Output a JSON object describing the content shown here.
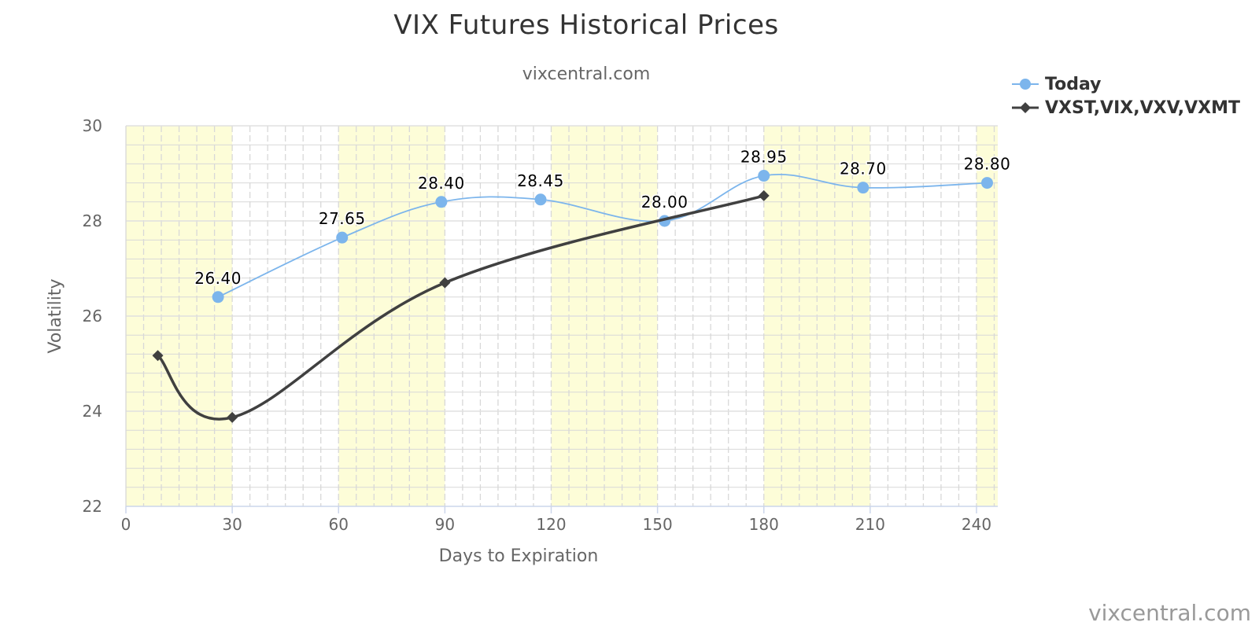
{
  "chart_data": {
    "type": "line",
    "title": "VIX Futures Historical Prices",
    "subtitle": "vixcentral.com",
    "xlabel": "Days to Expiration",
    "ylabel": "Volatility",
    "xlim": [
      0,
      246
    ],
    "ylim": [
      22,
      30
    ],
    "x_ticks": [
      0,
      30,
      60,
      90,
      120,
      150,
      180,
      210,
      240
    ],
    "y_ticks": [
      22,
      24,
      26,
      28,
      30
    ],
    "grid": true,
    "legend_position": "top-right",
    "shaded_x_bands": [
      [
        0,
        30
      ],
      [
        60,
        90
      ],
      [
        120,
        150
      ],
      [
        180,
        210
      ],
      [
        240,
        246
      ]
    ],
    "series": [
      {
        "name": "Today",
        "color": "#7cb5ec",
        "marker": "circle",
        "x": [
          26,
          61,
          89,
          117,
          152,
          180,
          208,
          243
        ],
        "y": [
          26.4,
          27.65,
          28.4,
          28.45,
          28.0,
          28.95,
          28.7,
          28.8
        ],
        "labels": [
          "26.40",
          "27.65",
          "28.40",
          "28.45",
          "28.00",
          "28.95",
          "28.70",
          "28.80"
        ]
      },
      {
        "name": "VXST,VIX,VXV,VXMT",
        "color": "#404040",
        "marker": "diamond",
        "x": [
          9,
          30,
          90,
          180
        ],
        "y": [
          25.17,
          23.87,
          26.7,
          28.53
        ]
      }
    ]
  },
  "colors": {
    "band": "#fdfdd8",
    "grid_major": "#e0e0e0",
    "grid_minor": "#d8d8d8",
    "axis": "#ccd6eb",
    "tick_label": "#666666"
  },
  "watermark": "vixcentral.com"
}
